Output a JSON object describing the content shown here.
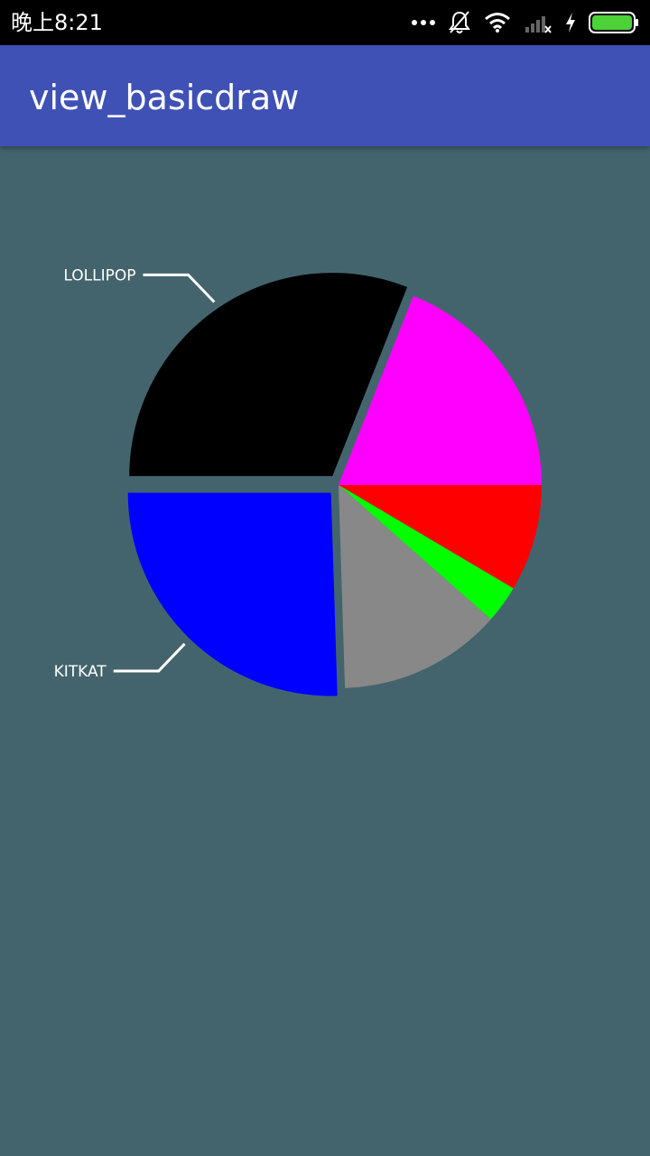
{
  "status_bar": {
    "time": "晚上8:21",
    "icons": [
      "more-dots-icon",
      "notifications-off-icon",
      "wifi-icon",
      "cellular-no-signal-icon",
      "charging-icon",
      "battery-icon"
    ]
  },
  "app_bar": {
    "title": "view_basicdraw"
  },
  "colors": {
    "status_bar": "#000000",
    "app_bar": "#3f51b5",
    "background": "#43646d",
    "battery": "#4cd137"
  },
  "chart_data": {
    "type": "pie",
    "start_angle_deg": 0,
    "direction": "clockwise",
    "slices": [
      {
        "label": "",
        "value": 8.5,
        "color": "#ff0000",
        "exploded": false,
        "callout": false
      },
      {
        "label": "",
        "value": 3,
        "color": "#00ff00",
        "exploded": false,
        "callout": false
      },
      {
        "label": "",
        "value": 13,
        "color": "#888888",
        "exploded": false,
        "callout": false
      },
      {
        "label": "KITKAT",
        "value": 25.5,
        "color": "#0000ff",
        "exploded": true,
        "callout": true
      },
      {
        "label": "LOLLIPOP",
        "value": 31,
        "color": "#000000",
        "exploded": true,
        "callout": true
      },
      {
        "label": "",
        "value": 19,
        "color": "#ff00ff",
        "exploded": false,
        "callout": false
      }
    ]
  }
}
